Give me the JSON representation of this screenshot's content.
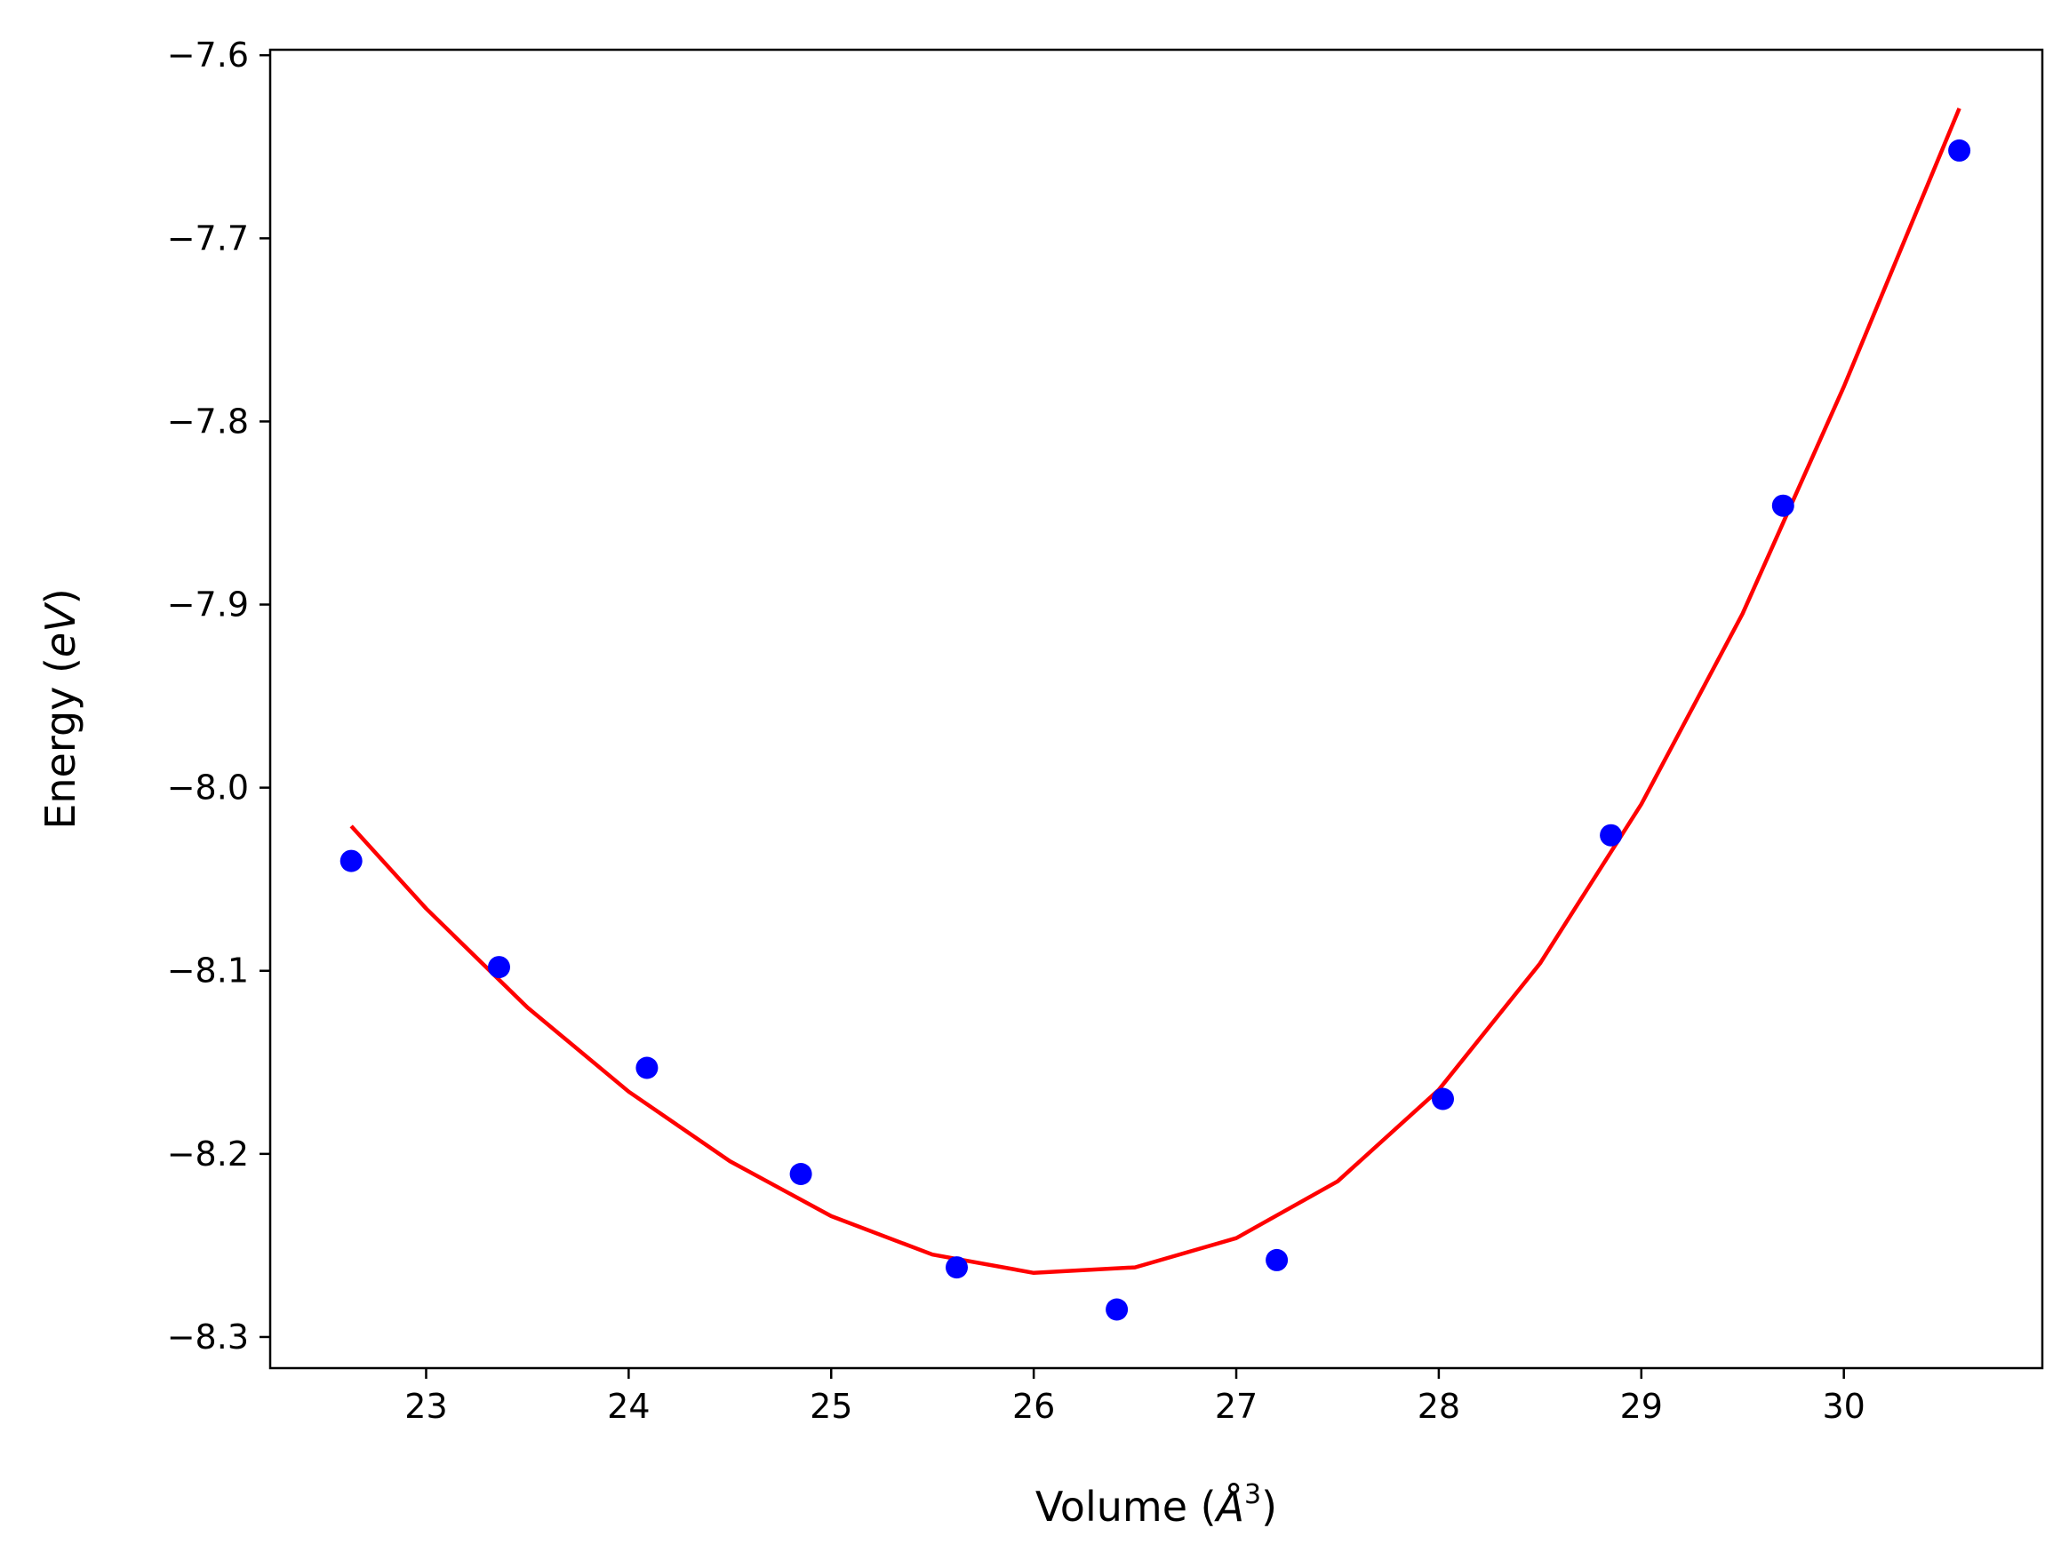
{
  "chart_data": {
    "type": "scatter",
    "title": "",
    "xlabel": "Volume (Å³)",
    "ylabel": "Energy (eV)",
    "xlabel_parts": {
      "prefix": "Volume (",
      "symbol": "Å",
      "sup": "3",
      "suffix": ")"
    },
    "ylabel_parts": {
      "prefix": "Energy (",
      "italic": "eV",
      "suffix": ")"
    },
    "xlim": [
      22.23,
      30.98
    ],
    "ylim": [
      -8.317,
      -7.597
    ],
    "x_ticks": [
      23,
      24,
      25,
      26,
      27,
      28,
      29,
      30
    ],
    "x_tick_labels": [
      "23",
      "24",
      "25",
      "26",
      "27",
      "28",
      "29",
      "30"
    ],
    "y_ticks": [
      -8.3,
      -8.2,
      -8.1,
      -8.0,
      -7.9,
      -7.8,
      -7.7,
      -7.6
    ],
    "y_tick_labels": [
      "−8.3",
      "−8.2",
      "−8.1",
      "−8.0",
      "−7.9",
      "−7.8",
      "−7.7",
      "−7.6"
    ],
    "grid": false,
    "series": [
      {
        "kind": "scatter",
        "color": "#0000ff",
        "x": [
          22.63,
          23.36,
          24.09,
          24.85,
          25.62,
          26.41,
          27.2,
          28.02,
          28.85,
          29.7,
          30.57
        ],
        "y": [
          -8.04,
          -8.098,
          -8.153,
          -8.211,
          -8.262,
          -8.285,
          -8.258,
          -8.17,
          -8.026,
          -7.846,
          -7.652
        ]
      },
      {
        "kind": "line",
        "color": "#ff0000",
        "x": [
          22.63,
          23.0,
          23.5,
          24.0,
          24.5,
          25.0,
          25.5,
          26.0,
          26.5,
          27.0,
          27.5,
          28.0,
          28.5,
          29.0,
          29.5,
          30.0,
          30.57
        ],
        "y": [
          -8.021,
          -8.066,
          -8.12,
          -8.166,
          -8.204,
          -8.234,
          -8.255,
          -8.265,
          -8.262,
          -8.246,
          -8.215,
          -8.165,
          -8.096,
          -8.009,
          -7.905,
          -7.781,
          -7.629
        ]
      }
    ]
  }
}
